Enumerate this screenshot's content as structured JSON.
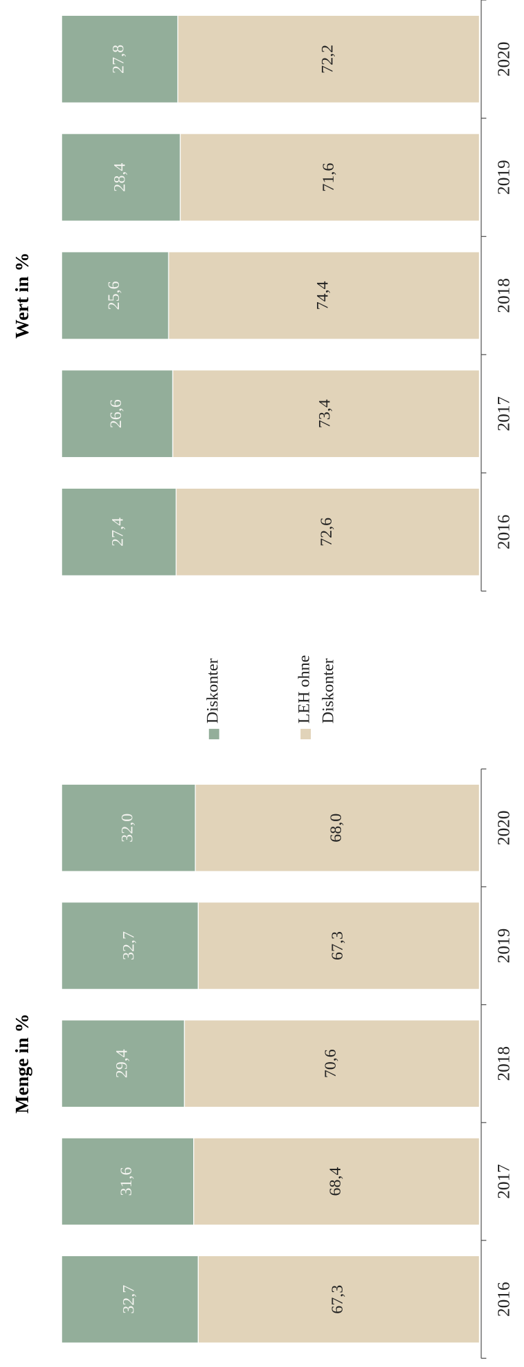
{
  "chart_data": [
    {
      "type": "bar",
      "title": "Menge in %",
      "categories": [
        "2016",
        "2017",
        "2018",
        "2019",
        "2020"
      ],
      "series": [
        {
          "color": "#93ae9a",
          "values": [
            32.7,
            31.6,
            29.4,
            32.7,
            32.0
          ],
          "value_labels": [
            "32,7",
            "31,6",
            "29,4",
            "32,7",
            "32,0"
          ]
        },
        {
          "color": "#e1d3b9",
          "values": [
            67.3,
            68.4,
            70.6,
            67.3,
            68.0
          ],
          "value_labels": [
            "67,3",
            "68,4",
            "70,6",
            "67,3",
            "68,0"
          ]
        }
      ],
      "ylim": [
        0,
        100
      ]
    },
    {
      "type": "bar",
      "title": "Wert in %",
      "categories": [
        "2016",
        "2017",
        "2018",
        "2019",
        "2020"
      ],
      "series": [
        {
          "color": "#93ae9a",
          "values": [
            27.4,
            26.6,
            25.6,
            28.4,
            27.8
          ],
          "value_labels": [
            "27,4",
            "26,6",
            "25,6",
            "28,4",
            "27,8"
          ]
        },
        {
          "color": "#e1d3b9",
          "values": [
            72.6,
            73.4,
            74.4,
            71.6,
            72.2
          ],
          "value_labels": [
            "72,6",
            "73,4",
            "74,4",
            "71,6",
            "72,2"
          ]
        }
      ],
      "ylim": [
        0,
        100
      ]
    }
  ],
  "legend": [
    {
      "name": "Diskonter",
      "color": "#93ae9a"
    },
    {
      "name": "LEH ohne Diskonter",
      "color": "#e1d3b9"
    }
  ]
}
